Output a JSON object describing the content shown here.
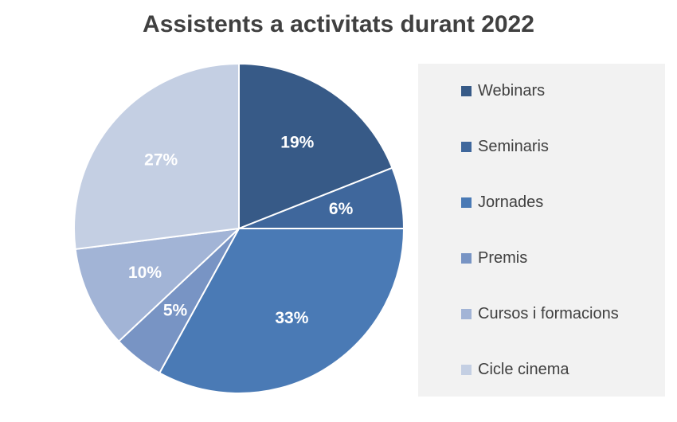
{
  "chart_data": {
    "type": "pie",
    "title": "Assistents a activitats durant 2022",
    "categories": [
      "Webinars",
      "Seminaris",
      "Jornades",
      "Premis",
      "Cursos i formacions",
      "Cicle cinema"
    ],
    "values": [
      19,
      6,
      33,
      5,
      10,
      27
    ],
    "labels": [
      "19%",
      "6%",
      "33%",
      "5%",
      "10%",
      "27%"
    ],
    "colors": [
      "#375a87",
      "#3f679c",
      "#4a7ab5",
      "#7894c4",
      "#a2b4d6",
      "#c4cfe3"
    ],
    "legend_position": "right"
  }
}
